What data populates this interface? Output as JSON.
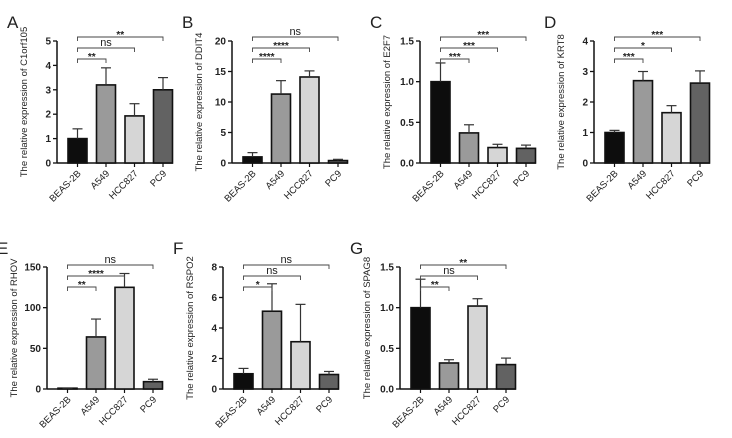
{
  "chart_data": [
    {
      "panel": "A",
      "type": "bar",
      "ylabel": "The relative expression of C1orf105",
      "categories": [
        "BEAS-2B",
        "A549",
        "HCC827",
        "PC9"
      ],
      "values": [
        1.0,
        3.2,
        1.93,
        3.0
      ],
      "errors": [
        0.4,
        0.7,
        0.5,
        0.5
      ],
      "ylim": [
        0,
        5
      ],
      "yticks": [
        "0",
        "1",
        "2",
        "3",
        "4",
        "5"
      ],
      "tickvals": [
        0,
        1,
        2,
        3,
        4,
        5
      ],
      "significance": [
        "**",
        "ns",
        "**"
      ]
    },
    {
      "panel": "B",
      "type": "bar",
      "ylabel": "The relative expression of DDIT4",
      "categories": [
        "BEAS-2B",
        "A549",
        "HCC827",
        "PC9"
      ],
      "values": [
        1.0,
        11.3,
        14.1,
        0.4
      ],
      "errors": [
        0.7,
        2.2,
        1.0,
        0.2
      ],
      "ylim": [
        0,
        20
      ],
      "yticks": [
        "0",
        "5",
        "10",
        "15",
        "20"
      ],
      "tickvals": [
        0,
        5,
        10,
        15,
        20
      ],
      "significance": [
        "****",
        "****",
        "ns"
      ]
    },
    {
      "panel": "C",
      "type": "bar",
      "ylabel": "The relative expression of E2F7",
      "categories": [
        "BEAS-2B",
        "A549",
        "HCC827",
        "PC9"
      ],
      "values": [
        1.0,
        0.37,
        0.19,
        0.18
      ],
      "errors": [
        0.23,
        0.1,
        0.04,
        0.04
      ],
      "ylim": [
        0,
        1.5
      ],
      "yticks": [
        "0.0",
        "0.5",
        "1.0",
        "1.5"
      ],
      "tickvals": [
        0,
        0.5,
        1.0,
        1.5
      ],
      "significance": [
        "***",
        "***",
        "***"
      ]
    },
    {
      "panel": "D",
      "type": "bar",
      "ylabel": "The relative expression of KRT8",
      "categories": [
        "BEAS-2B",
        "A549",
        "HCC827",
        "PC9"
      ],
      "values": [
        1.0,
        2.7,
        1.65,
        2.62
      ],
      "errors": [
        0.07,
        0.3,
        0.23,
        0.4
      ],
      "ylim": [
        0,
        4
      ],
      "yticks": [
        "0",
        "1",
        "2",
        "3",
        "4"
      ],
      "tickvals": [
        0,
        1,
        2,
        3,
        4
      ],
      "significance": [
        "***",
        "*",
        "***"
      ]
    },
    {
      "panel": "E",
      "type": "bar",
      "ylabel": "The relative expression of RHOV",
      "categories": [
        "BEAS-2B",
        "A549",
        "HCC827",
        "PC9"
      ],
      "values": [
        1.0,
        64,
        125,
        9
      ],
      "errors": [
        0.2,
        22,
        17,
        3
      ],
      "ylim": [
        0,
        150
      ],
      "yticks": [
        "0",
        "50",
        "100",
        "150"
      ],
      "tickvals": [
        0,
        50,
        100,
        150
      ],
      "significance": [
        "**",
        "****",
        "ns"
      ]
    },
    {
      "panel": "F",
      "type": "bar",
      "ylabel": "The relative expression of RSPO2",
      "categories": [
        "BEAS-2B",
        "A549",
        "HCC827",
        "PC9"
      ],
      "values": [
        1.0,
        5.1,
        3.1,
        0.95
      ],
      "errors": [
        0.35,
        1.8,
        2.45,
        0.2
      ],
      "ylim": [
        0,
        8
      ],
      "yticks": [
        "0",
        "2",
        "4",
        "6",
        "8"
      ],
      "tickvals": [
        0,
        2,
        4,
        6,
        8
      ],
      "significance": [
        "*",
        "ns",
        "ns"
      ]
    },
    {
      "panel": "G",
      "type": "bar",
      "ylabel": "The relative expression of SPAG8",
      "categories": [
        "BEAS-2B",
        "A549",
        "HCC827",
        "PC9"
      ],
      "values": [
        1.0,
        0.32,
        1.02,
        0.3
      ],
      "errors": [
        0.35,
        0.04,
        0.09,
        0.08
      ],
      "ylim": [
        0,
        1.5
      ],
      "yticks": [
        "0.0",
        "0.5",
        "1.0",
        "1.5"
      ],
      "tickvals": [
        0,
        0.5,
        1.0,
        1.5
      ],
      "significance": [
        "**",
        "ns",
        "**"
      ]
    }
  ],
  "colors": {
    "bars": [
      "#0d0d0d",
      "#9a9a9a",
      "#d6d6d6",
      "#626262"
    ],
    "outline": "#111111"
  }
}
